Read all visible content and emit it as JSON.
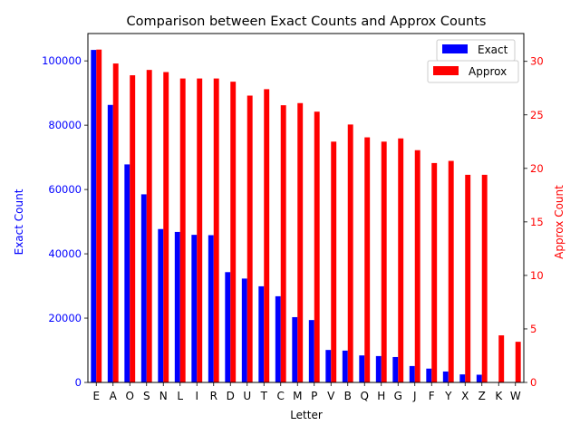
{
  "chart_data": {
    "type": "bar",
    "title": "Comparison between Exact Counts and Approx Counts",
    "xlabel": "Letter",
    "ylabel_left": "Exact Count",
    "ylabel_right": "Approx Count",
    "categories": [
      "E",
      "A",
      "O",
      "S",
      "N",
      "L",
      "I",
      "R",
      "D",
      "U",
      "T",
      "C",
      "M",
      "P",
      "V",
      "B",
      "Q",
      "H",
      "G",
      "J",
      "F",
      "Y",
      "X",
      "Z",
      "K",
      "W"
    ],
    "left_axis": {
      "ylim": [
        0,
        108500
      ],
      "ticks": [
        0,
        20000,
        40000,
        60000,
        80000,
        100000
      ],
      "tick_labels": [
        "0",
        "20000",
        "40000",
        "60000",
        "80000",
        "100000"
      ],
      "color": "#0000ff"
    },
    "right_axis": {
      "ylim": [
        0,
        32.6
      ],
      "ticks": [
        0,
        5,
        10,
        15,
        20,
        25,
        30
      ],
      "tick_labels": [
        "0",
        "5",
        "10",
        "15",
        "20",
        "25",
        "30"
      ],
      "color": "#ff0000"
    },
    "series": [
      {
        "name": "Exact",
        "axis": "left",
        "color": "#0000ff",
        "values": [
          103400,
          86300,
          67800,
          58500,
          47700,
          46800,
          45900,
          45800,
          34300,
          32300,
          29900,
          26800,
          20300,
          19400,
          10100,
          9900,
          8400,
          8200,
          7900,
          5100,
          4300,
          3400,
          2500,
          2400,
          0,
          0
        ]
      },
      {
        "name": "Approx",
        "axis": "right",
        "color": "#ff0000",
        "values": [
          31.1,
          29.8,
          28.7,
          29.2,
          29.0,
          28.4,
          28.4,
          28.4,
          28.1,
          26.8,
          27.4,
          25.9,
          26.1,
          25.3,
          22.5,
          24.1,
          22.9,
          22.5,
          22.8,
          21.7,
          20.5,
          20.7,
          19.4,
          19.4,
          4.4,
          3.8
        ]
      }
    ],
    "legend": "top-right",
    "grid": false
  }
}
